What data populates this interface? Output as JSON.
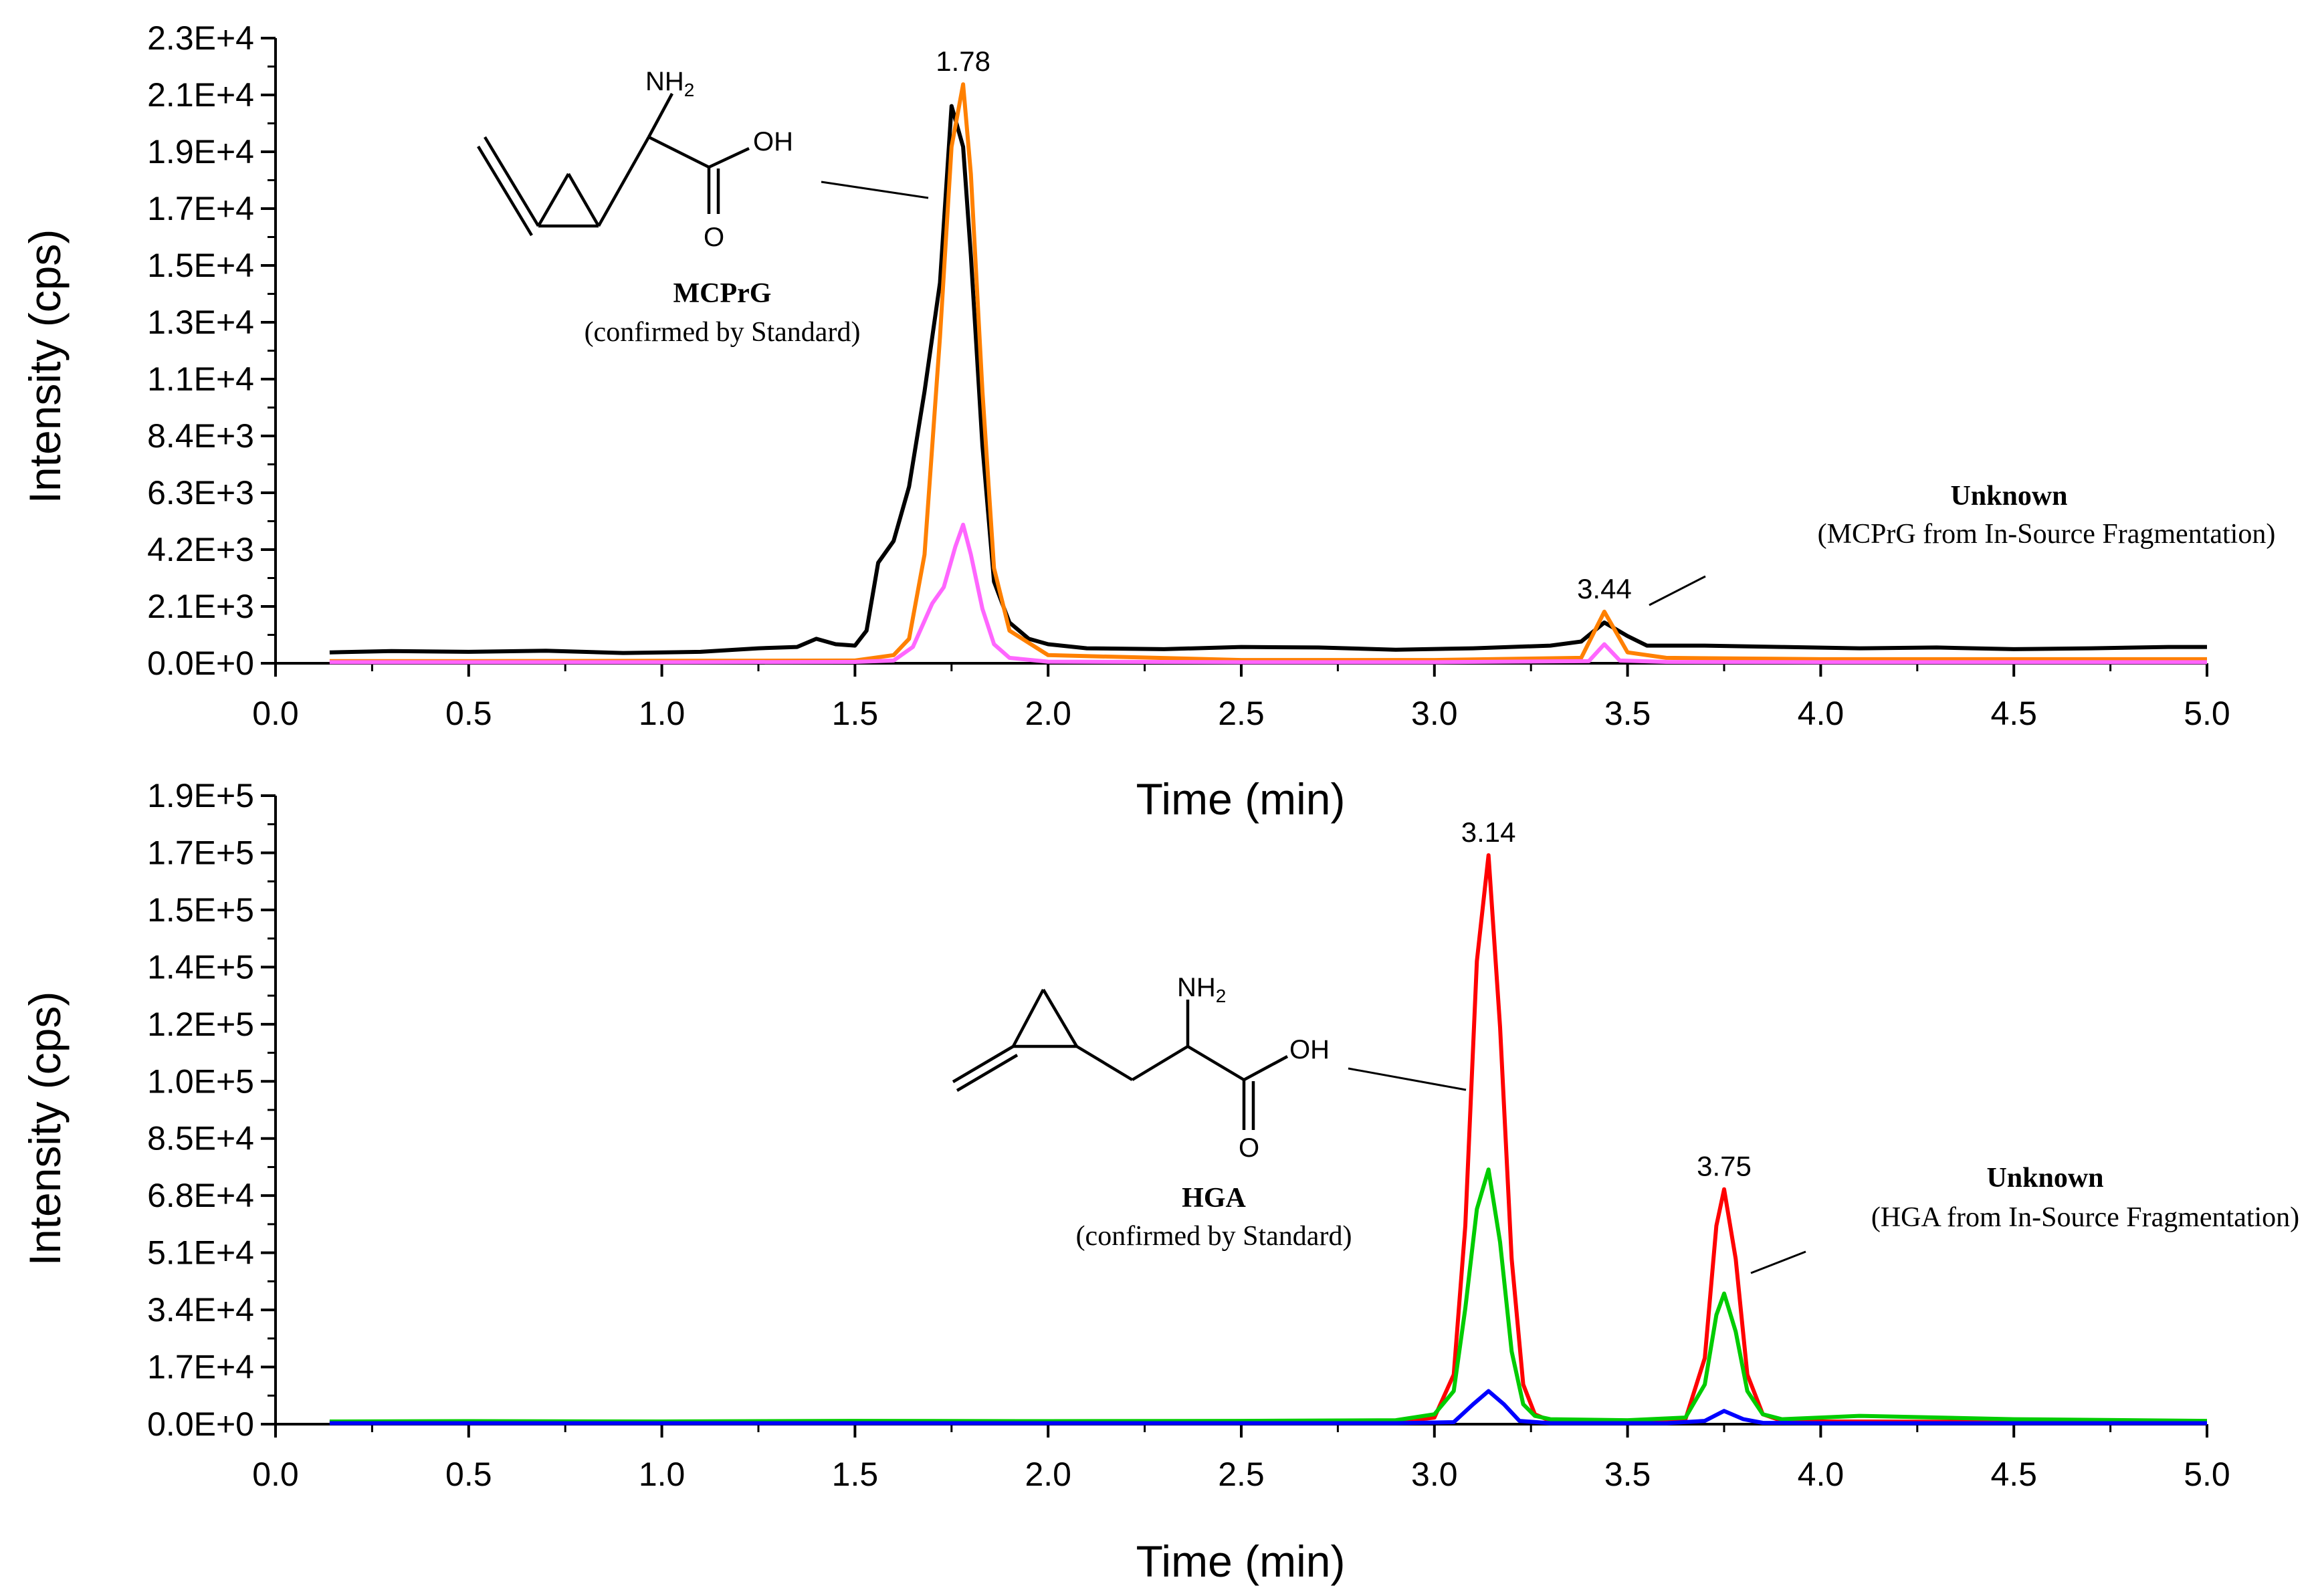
{
  "chart_data": [
    {
      "type": "line",
      "panel": "top",
      "xlabel": "Time (min)",
      "ylabel": "Intensity (cps)",
      "xlim": [
        0.0,
        5.0
      ],
      "ylim": [
        0,
        23000
      ],
      "xticks": [
        "0.0",
        "0.5",
        "1.0",
        "1.5",
        "2.0",
        "2.5",
        "3.0",
        "3.5",
        "4.0",
        "4.5",
        "5.0"
      ],
      "yticks": [
        "0.0E+0",
        "2.1E+3",
        "4.2E+3",
        "6.3E+3",
        "8.4E+3",
        "1.1E+4",
        "1.3E+4",
        "1.5E+4",
        "1.7E+4",
        "1.9E+4",
        "2.1E+4",
        "2.3E+4"
      ],
      "series": [
        {
          "name": "trace-black",
          "color": "#000000",
          "x": [
            0.14,
            0.3,
            0.5,
            0.7,
            0.9,
            1.1,
            1.25,
            1.35,
            1.4,
            1.45,
            1.5,
            1.53,
            1.56,
            1.6,
            1.64,
            1.68,
            1.72,
            1.75,
            1.78,
            1.8,
            1.83,
            1.86,
            1.9,
            1.95,
            2.0,
            2.1,
            2.3,
            2.5,
            2.7,
            2.9,
            3.1,
            3.3,
            3.38,
            3.44,
            3.5,
            3.55,
            3.7,
            3.9,
            4.1,
            4.3,
            4.5,
            4.7,
            4.9,
            5.0
          ],
          "y": [
            400,
            450,
            420,
            460,
            380,
            420,
            550,
            600,
            900,
            700,
            650,
            1200,
            3700,
            4500,
            6500,
            10000,
            14000,
            20500,
            19000,
            15000,
            8000,
            3000,
            1500,
            900,
            700,
            550,
            520,
            600,
            580,
            500,
            550,
            650,
            800,
            1500,
            1000,
            650,
            650,
            600,
            550,
            580,
            520,
            550,
            600,
            600
          ]
        },
        {
          "name": "trace-orange",
          "color": "#ff8000",
          "x": [
            0.14,
            0.5,
            1.0,
            1.5,
            1.6,
            1.64,
            1.68,
            1.72,
            1.75,
            1.78,
            1.8,
            1.83,
            1.86,
            1.9,
            2.0,
            2.5,
            3.0,
            3.38,
            3.44,
            3.5,
            3.6,
            4.0,
            4.5,
            5.0
          ],
          "y": [
            80,
            80,
            90,
            100,
            300,
            900,
            4000,
            12000,
            19000,
            21300,
            18000,
            10000,
            3500,
            1200,
            300,
            120,
            120,
            200,
            1900,
            400,
            200,
            150,
            150,
            150
          ]
        },
        {
          "name": "trace-pink",
          "color": "#ff66ff",
          "x": [
            0.14,
            0.5,
            1.0,
            1.5,
            1.6,
            1.65,
            1.7,
            1.73,
            1.76,
            1.78,
            1.8,
            1.83,
            1.86,
            1.9,
            2.0,
            2.5,
            3.0,
            3.4,
            3.44,
            3.48,
            3.6,
            4.0,
            4.5,
            5.0
          ],
          "y": [
            40,
            40,
            40,
            50,
            100,
            600,
            2200,
            2800,
            4300,
            5100,
            4000,
            2000,
            700,
            200,
            60,
            40,
            40,
            80,
            700,
            100,
            50,
            40,
            40,
            40
          ]
        }
      ],
      "peak_labels": [
        {
          "text": "1.78",
          "x": 1.78,
          "y": 21300
        },
        {
          "text": "3.44",
          "x": 3.44,
          "y": 1900
        }
      ],
      "annotations": [
        {
          "title": "MCPrG",
          "subtitle": "(confirmed by Standard)"
        },
        {
          "title": "Unknown",
          "subtitle": "(MCPrG from In-Source Fragmentation)"
        }
      ],
      "molecule_labels": {
        "amine": "NH",
        "subscript": "2",
        "acid": "OH",
        "carbonyl": "O"
      }
    },
    {
      "type": "line",
      "panel": "bottom",
      "xlabel": "Time (min)",
      "ylabel": "Intensity (cps)",
      "xlim": [
        0.0,
        5.0
      ],
      "ylim": [
        0,
        190000
      ],
      "xticks": [
        "0.0",
        "0.5",
        "1.0",
        "1.5",
        "2.0",
        "2.5",
        "3.0",
        "3.5",
        "4.0",
        "4.5",
        "5.0"
      ],
      "yticks": [
        "0.0E+0",
        "1.7E+4",
        "3.4E+4",
        "5.1E+4",
        "6.8E+4",
        "8.5E+4",
        "1.0E+5",
        "1.2E+5",
        "1.4E+5",
        "1.5E+5",
        "1.7E+5",
        "1.9E+5"
      ],
      "series": [
        {
          "name": "trace-red",
          "color": "#ff0000",
          "x": [
            0.14,
            1.0,
            2.0,
            2.9,
            3.0,
            3.05,
            3.08,
            3.11,
            3.14,
            3.17,
            3.2,
            3.23,
            3.26,
            3.3,
            3.5,
            3.65,
            3.7,
            3.73,
            3.75,
            3.78,
            3.81,
            3.85,
            3.9,
            4.0,
            5.0
          ],
          "y": [
            500,
            500,
            500,
            600,
            2000,
            15000,
            60000,
            140000,
            172000,
            120000,
            50000,
            12000,
            3000,
            1000,
            800,
            1500,
            20000,
            60000,
            71000,
            50000,
            15000,
            3000,
            1000,
            800,
            600
          ]
        },
        {
          "name": "trace-green",
          "color": "#00cc00",
          "x": [
            0.14,
            0.5,
            1.0,
            1.5,
            2.0,
            2.5,
            2.9,
            3.0,
            3.05,
            3.08,
            3.11,
            3.14,
            3.17,
            3.2,
            3.23,
            3.26,
            3.3,
            3.5,
            3.65,
            3.7,
            3.73,
            3.75,
            3.78,
            3.81,
            3.85,
            3.9,
            4.1,
            4.5,
            5.0
          ],
          "y": [
            800,
            900,
            800,
            1000,
            900,
            1000,
            1200,
            3000,
            10000,
            35000,
            65000,
            77000,
            55000,
            22000,
            6000,
            2500,
            1500,
            1200,
            2000,
            12000,
            33000,
            39500,
            28000,
            10000,
            3000,
            1500,
            2500,
            1500,
            1000
          ]
        },
        {
          "name": "trace-blue",
          "color": "#0000ff",
          "x": [
            0.14,
            1.0,
            2.0,
            2.9,
            3.05,
            3.1,
            3.14,
            3.18,
            3.22,
            3.3,
            3.6,
            3.7,
            3.75,
            3.8,
            3.85,
            4.0,
            5.0
          ],
          "y": [
            300,
            300,
            300,
            300,
            600,
            6000,
            10000,
            6000,
            1000,
            300,
            300,
            1000,
            4000,
            1500,
            400,
            300,
            300
          ]
        }
      ],
      "peak_labels": [
        {
          "text": "3.14",
          "x": 3.14,
          "y": 172000
        },
        {
          "text": "3.75",
          "x": 3.75,
          "y": 71000
        }
      ],
      "annotations": [
        {
          "title": "HGA",
          "subtitle": "(confirmed by Standard)"
        },
        {
          "title": "Unknown",
          "subtitle": "(HGA from In-Source Fragmentation)"
        }
      ],
      "molecule_labels": {
        "amine": "NH",
        "subscript": "2",
        "acid": "OH",
        "carbonyl": "O"
      }
    }
  ]
}
